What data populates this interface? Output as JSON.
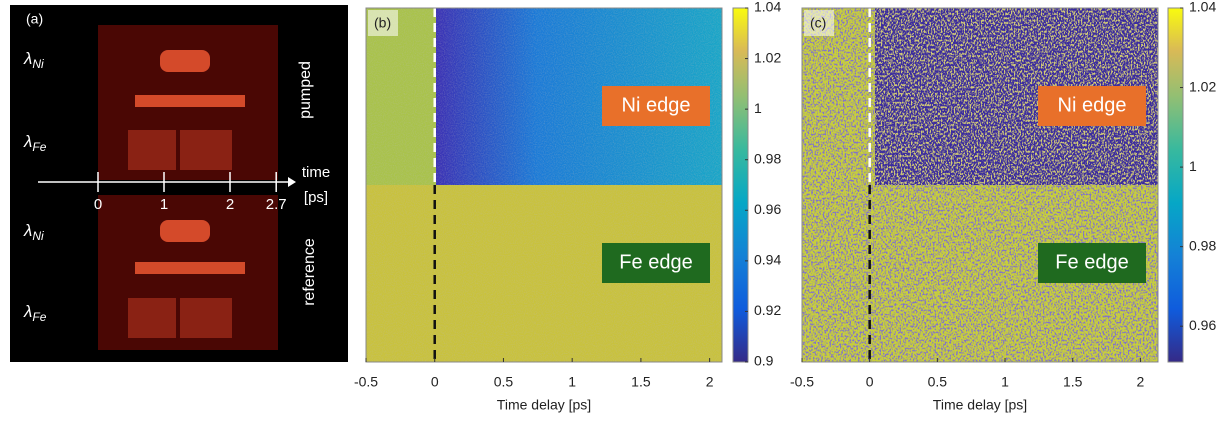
{
  "panels": [
    {
      "label": "(a)",
      "rows": [
        {
          "symbol": "λ",
          "subscript": "Ni"
        },
        {
          "symbol": "λ",
          "subscript": "Fe"
        },
        {
          "symbol": "λ",
          "subscript": "Ni"
        },
        {
          "symbol": "λ",
          "subscript": "Fe"
        }
      ],
      "side_labels": [
        "pumped",
        "reference"
      ],
      "axis_title": [
        "time",
        "[ps]"
      ],
      "ticks": [
        0,
        1,
        2,
        2.7
      ]
    },
    {
      "label": "(b)",
      "xlim": [
        -0.5,
        2.09
      ],
      "xticks": [
        -0.5,
        0,
        0.5,
        1,
        1.5,
        2
      ],
      "xlabel": "Time delay [ps]",
      "clim": [
        0.9,
        1.04
      ],
      "cticks": [
        1.04,
        1.02,
        1,
        0.98,
        0.96,
        0.94,
        0.92,
        0.9
      ],
      "annotations": [
        "Ni edge",
        "Fe edge"
      ]
    },
    {
      "label": "(c)",
      "xlim": [
        -0.5,
        2.13
      ],
      "xticks": [
        -0.5,
        0,
        0.5,
        1,
        1.5,
        2
      ],
      "xlabel": "Time delay [ps]",
      "clim": [
        0.951,
        1.04
      ],
      "cticks": [
        1.04,
        1.02,
        1,
        0.98,
        0.96
      ],
      "annotations": [
        "Ni edge",
        "Fe edge"
      ]
    }
  ]
}
